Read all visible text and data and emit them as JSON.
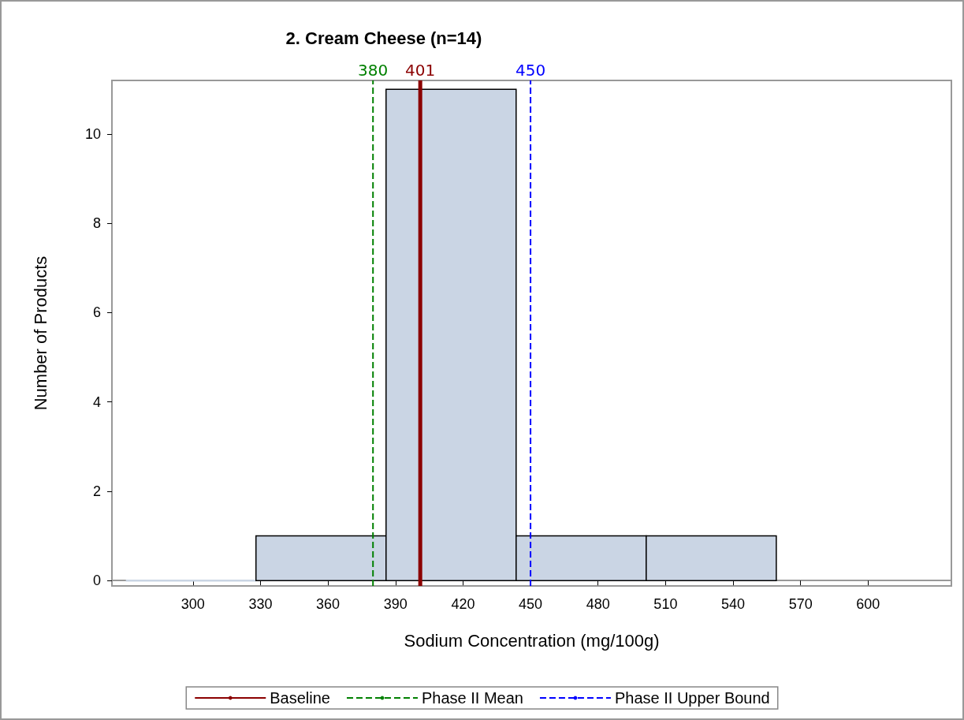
{
  "chart_data": {
    "type": "histogram",
    "title": "2. Cream Cheese (n=14)",
    "xlabel": "Sodium Concentration (mg/100g)",
    "ylabel": "Number of Products",
    "bins": [
      270.2,
      328,
      385.8,
      443.6,
      501.4,
      559.2
    ],
    "values": [
      0,
      1,
      11,
      1,
      1
    ],
    "color": "#cad5e4",
    "xlim": [
      264,
      637
    ],
    "xticks": [
      300,
      330,
      360,
      390,
      420,
      450,
      480,
      510,
      540,
      570,
      600
    ],
    "ylim": [
      -0.12,
      11.2
    ],
    "yticks": [
      0,
      2,
      4,
      6,
      8,
      10
    ],
    "ref_lines": [
      {
        "axis": "x",
        "value": 401,
        "label": "Baseline",
        "color": "#8b0000",
        "line_style": "solid"
      },
      {
        "axis": "x",
        "value": 380,
        "label": "Phase II Mean",
        "color": "#008000",
        "line_style": "dashed"
      },
      {
        "axis": "x",
        "value": 450,
        "label": "Phase II Upper Bound",
        "color": "#0000ff",
        "line_style": "dashed"
      }
    ],
    "annotations": [
      {
        "text": "401",
        "x": 401,
        "y": 11.2
      },
      {
        "text": "380",
        "x": 380,
        "y": 11.2
      },
      {
        "text": "450",
        "x": 450,
        "y": 11.2
      }
    ],
    "grid": false,
    "legend": "bottom"
  }
}
